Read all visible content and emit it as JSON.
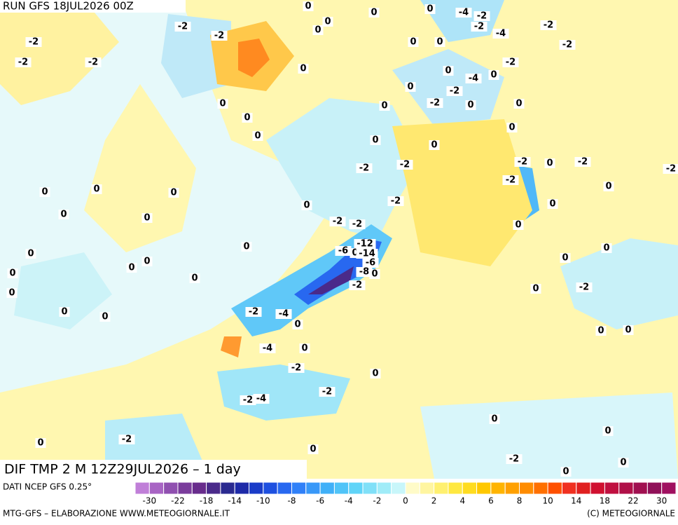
{
  "header": {
    "run": "RUN GFS 18JUL2026 00Z"
  },
  "map": {
    "title": "DIF TMP 2 M 12Z29JUL2026 – 1 day",
    "labels": [
      "0",
      "0",
      "0",
      "-4",
      "-2",
      "-2",
      "-4",
      "-2",
      "-2",
      "-2",
      "-2",
      "0",
      "0",
      "-2",
      "-2",
      "-2",
      "0",
      "0",
      "-2",
      "0",
      "0",
      "-4",
      "0",
      "-2",
      "0",
      "-2",
      "0",
      "0",
      "0",
      "0",
      "0",
      "0",
      "0",
      "0",
      "0",
      "-2",
      "-2",
      "-2",
      "0",
      "-2",
      "-2",
      "-2",
      "0",
      "0",
      "0",
      "0",
      "0",
      "0",
      "0",
      "-2",
      "0",
      "-2",
      "-2",
      "0",
      "-12",
      "-6",
      "0",
      "-14",
      "0",
      "0",
      "0",
      "-6",
      "-8",
      "0",
      "0",
      "0",
      "0",
      "0",
      "0",
      "-2",
      "0",
      "-2",
      "0",
      "-2",
      "-4",
      "0",
      "0",
      "0",
      "0",
      "0",
      "-4",
      "0",
      "-2",
      "0",
      "-2",
      "-2",
      "-4",
      "0",
      "0",
      "-2",
      "0",
      "0",
      "-2",
      "0",
      "0"
    ]
  },
  "legend": {
    "source": "DATI NCEP GFS 0.25°",
    "colors": [
      "#c07fd8",
      "#a864c4",
      "#9050b0",
      "#7a3c9c",
      "#682c8c",
      "#4a2a8a",
      "#2a2a90",
      "#1e2aa8",
      "#1a3cc8",
      "#1e50e0",
      "#2868f0",
      "#3080f8",
      "#3898f8",
      "#40b0f8",
      "#50c4f8",
      "#60d4f8",
      "#80e0f8",
      "#a0ecf8",
      "#c8f6fa",
      "#fffbc8",
      "#fff5a0",
      "#fff070",
      "#ffe840",
      "#ffdc20",
      "#ffc800",
      "#ffb400",
      "#ffa000",
      "#ff8c00",
      "#ff7000",
      "#ff5000",
      "#f03020",
      "#e02020",
      "#d01030",
      "#c01040",
      "#b01048",
      "#a01050",
      "#901058",
      "#a01060"
    ],
    "labels": [
      "-30",
      "-22",
      "-18",
      "-14",
      "-10",
      "-8",
      "-6",
      "-4",
      "-2",
      "0",
      "2",
      "4",
      "6",
      "8",
      "10",
      "14",
      "18",
      "22",
      "30"
    ]
  },
  "footer": {
    "left": "MTG-GFS – ELABORAZIONE WWW.METEOGIORNALE.IT",
    "right": "(C) METEOGIORNALE"
  }
}
